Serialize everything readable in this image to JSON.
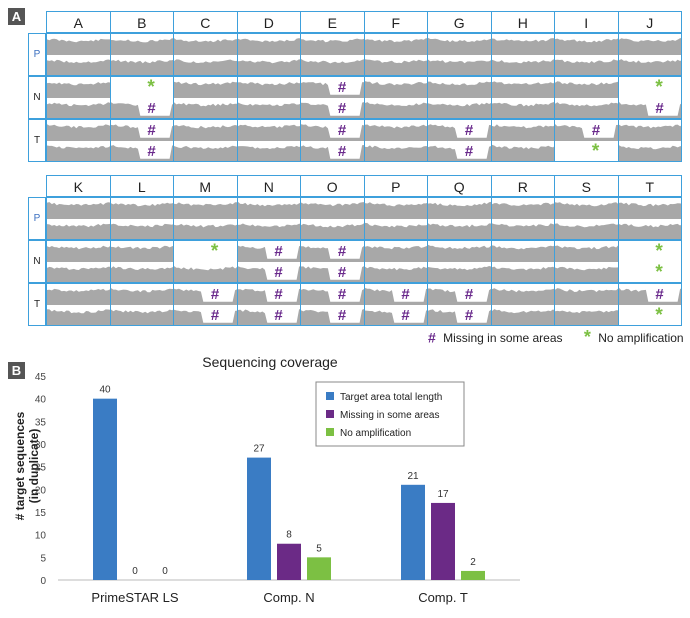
{
  "panel_a": {
    "label": "A",
    "row_labels": [
      "P",
      "N",
      "T"
    ],
    "top_columns": [
      "A",
      "B",
      "C",
      "D",
      "E",
      "F",
      "G",
      "H",
      "I",
      "J"
    ],
    "bottom_columns": [
      "K",
      "L",
      "M",
      "N",
      "O",
      "P",
      "Q",
      "R",
      "S",
      "T"
    ],
    "top_markers": {
      "B": {
        "N": [
          "star",
          "hash"
        ],
        "T": [
          "hash",
          "hash"
        ]
      },
      "E": {
        "N": [
          "hash",
          "hash"
        ],
        "T": [
          "hash",
          "hash"
        ]
      },
      "G": {
        "T": [
          "hash",
          "hash"
        ]
      },
      "I": {
        "T": [
          "hash",
          "star"
        ]
      },
      "J": {
        "N": [
          "star",
          "hash"
        ]
      }
    },
    "bottom_markers": {
      "M": {
        "N": [
          "star",
          ""
        ],
        "T": [
          "hash",
          "hash"
        ]
      },
      "N": {
        "N": [
          "hash",
          "hash"
        ],
        "T": [
          "hash",
          "hash"
        ]
      },
      "O": {
        "N": [
          "hash",
          "hash"
        ],
        "T": [
          "hash",
          "hash"
        ]
      },
      "P": {
        "T": [
          "hash",
          "hash"
        ]
      },
      "Q": {
        "T": [
          "hash",
          "hash"
        ]
      },
      "T": {
        "N": [
          "star",
          "star"
        ],
        "T": [
          "hash",
          "star"
        ]
      }
    },
    "hash_symbol": "#",
    "star_symbol": "*",
    "legend_missing": "Missing in some areas",
    "legend_none": "No amplification",
    "colors": {
      "border": "#3ea0dc",
      "hash": "#6a2a8c",
      "star": "#7cc043",
      "coverage": "#a8a8a8"
    }
  },
  "panel_b": {
    "label": "B"
  },
  "chart_data": {
    "type": "bar",
    "title": "Sequencing coverage",
    "ylabel": "# target sequences\n(in duplicate)",
    "ylabel_lines": [
      "# target sequences",
      "(in duplicate)"
    ],
    "xlabel": "",
    "ylim": [
      0,
      45
    ],
    "yticks": [
      0,
      5,
      10,
      15,
      20,
      25,
      30,
      35,
      40,
      45
    ],
    "categories": [
      "PrimeSTAR LS",
      "Comp. N",
      "Comp. T"
    ],
    "series": [
      {
        "name": "Target area total length",
        "color": "#3a7cc4",
        "values": [
          40,
          27,
          21
        ]
      },
      {
        "name": "Missing in some areas",
        "color": "#6b2a86",
        "values": [
          0,
          8,
          17
        ]
      },
      {
        "name": "No amplification",
        "color": "#7cc043",
        "values": [
          0,
          5,
          2
        ]
      }
    ],
    "grid": false,
    "legend_position": "top-right",
    "data_labels": true
  }
}
